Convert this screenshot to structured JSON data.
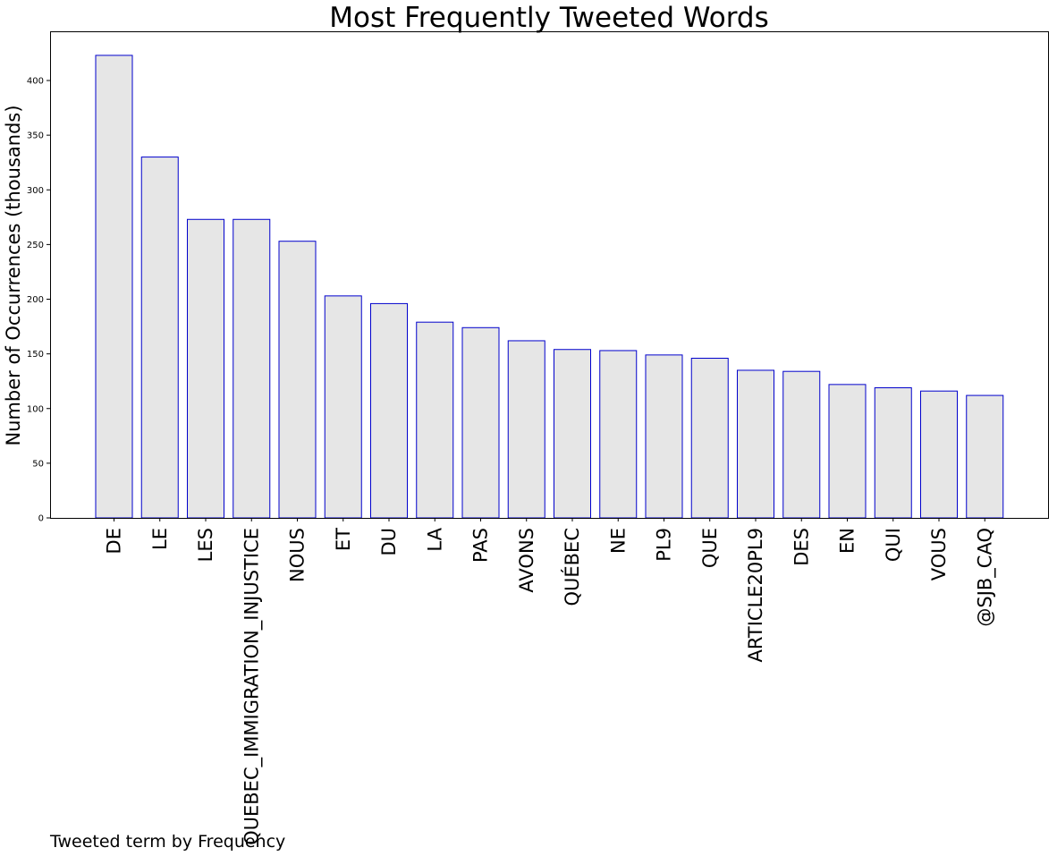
{
  "chart_data": {
    "type": "bar",
    "title": "Most Frequently Tweeted Words",
    "xlabel": "Tweeted term by Frequency",
    "ylabel": "Number of Occurrences (thousands)",
    "ylim": [
      0,
      445
    ],
    "yticks": [
      0,
      50,
      100,
      150,
      200,
      250,
      300,
      350,
      400
    ],
    "grid": false,
    "categories": [
      "DE",
      "LE",
      "LES",
      "QUEBEC_IMMIGRATION_INJUSTICE",
      "NOUS",
      "ET",
      "DU",
      "LA",
      "PAS",
      "AVONS",
      "QUÉBEC",
      "NE",
      "PL9",
      "QUE",
      "ARTICLE20PL9",
      "DES",
      "EN",
      "QUI",
      "VOUS",
      "@SJB_CAQ"
    ],
    "values": [
      423,
      330,
      273,
      273,
      253,
      203,
      196,
      179,
      174,
      162,
      154,
      153,
      149,
      146,
      135,
      134,
      122,
      119,
      116,
      112
    ],
    "colors": {
      "bar_fill": "#e6e6e6",
      "bar_edge": "#0000cc"
    }
  }
}
